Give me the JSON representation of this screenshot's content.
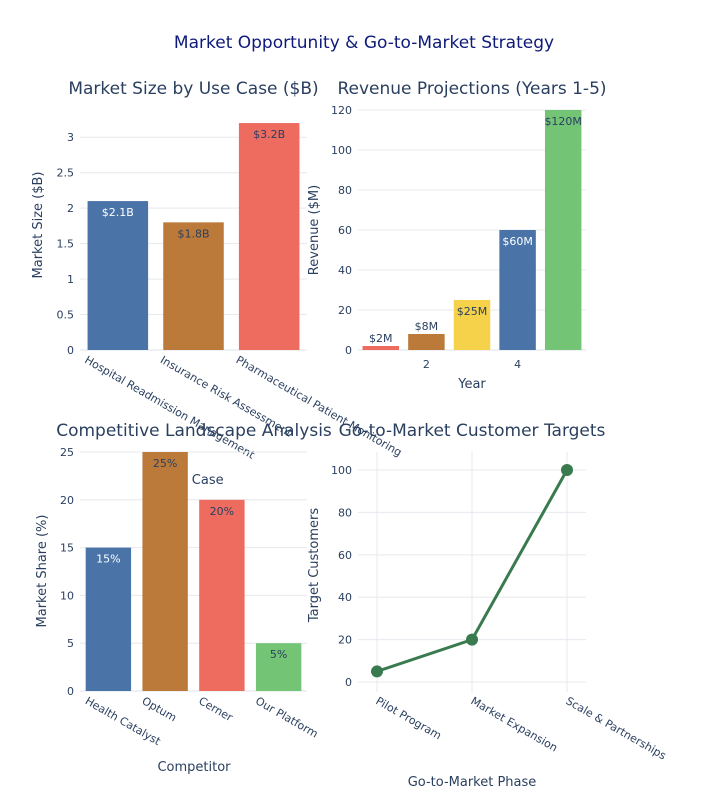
{
  "title": "Market Opportunity & Go-to-Market Strategy",
  "chart_data": [
    {
      "type": "bar",
      "title": "Market Size by Use Case ($B)",
      "xlabel": "Use Case",
      "ylabel": "Market Size ($B)",
      "categories": [
        "Hospital Readmission Management",
        "Insurance Risk Assessment",
        "Pharmaceutical Patient Monitoring"
      ],
      "values": [
        2.1,
        1.8,
        3.2
      ],
      "data_labels": [
        "$2.1B",
        "$1.8B",
        "$3.2B"
      ],
      "colors": [
        "#4a74a8",
        "#bc7a3a",
        "#ee6b60"
      ],
      "label_colors": [
        "#ffffff",
        "#2a3f5f",
        "#2a3f5f"
      ],
      "yticks": [
        "0",
        "0.5",
        "1",
        "1.5",
        "2",
        "2.5",
        "3"
      ],
      "ylim": [
        0,
        3.37
      ]
    },
    {
      "type": "bar",
      "title": "Revenue Projections (Years 1-5)",
      "xlabel": "Year",
      "ylabel": "Revenue ($M)",
      "x": [
        1,
        2,
        3,
        4,
        5
      ],
      "values": [
        2,
        8,
        25,
        60,
        120
      ],
      "data_labels": [
        "$2M",
        "$8M",
        "$25M",
        "$60M",
        "$120M"
      ],
      "colors": [
        "#ee6b60",
        "#bc7a3a",
        "#f6d14a",
        "#4a74a8",
        "#74c476"
      ],
      "label_colors": [
        "#2a3f5f",
        "#2a3f5f",
        "#2a3f5f",
        "#ffffff",
        "#2a3f5f"
      ],
      "xticks": [
        "2",
        "4"
      ],
      "yticks": [
        "0",
        "20",
        "40",
        "60",
        "80",
        "100",
        "120"
      ],
      "ylim": [
        0,
        120
      ]
    },
    {
      "type": "bar",
      "title": "Competitive Landscape Analysis",
      "xlabel": "Competitor",
      "ylabel": "Market Share (%)",
      "categories": [
        "Health Catalyst",
        "Optum",
        "Cerner",
        "Our Platform"
      ],
      "values": [
        15,
        25,
        20,
        5
      ],
      "data_labels": [
        "15%",
        "25%",
        "20%",
        "5%"
      ],
      "colors": [
        "#4a74a8",
        "#bc7a3a",
        "#ee6b60",
        "#74c476"
      ],
      "label_colors": [
        "#ffffff",
        "#2a3f5f",
        "#2a3f5f",
        "#2a3f5f"
      ],
      "yticks": [
        "0",
        "5",
        "10",
        "15",
        "20",
        "25"
      ],
      "ylim": [
        0,
        25
      ]
    },
    {
      "type": "line",
      "title": "Go-to-Market Customer Targets",
      "xlabel": "Go-to-Market Phase",
      "ylabel": "Target Customers",
      "categories": [
        "Pilot Program",
        "Market Expansion",
        "Scale & Partnerships"
      ],
      "values": [
        5,
        20,
        100
      ],
      "color": "#3a7a4f",
      "yticks": [
        "0",
        "20",
        "40",
        "60",
        "80",
        "100"
      ],
      "ylim": [
        -4.7,
        108.5
      ]
    }
  ]
}
